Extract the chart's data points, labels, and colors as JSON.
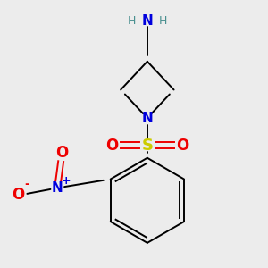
{
  "background_color": "#ececec",
  "bond_color": "#000000",
  "colors": {
    "N": "#0000dd",
    "O": "#ee0000",
    "S": "#cccc00",
    "C": "#000000",
    "H": "#4a9090"
  },
  "lw": 1.4,
  "figsize": [
    3.0,
    3.0
  ],
  "dpi": 100
}
